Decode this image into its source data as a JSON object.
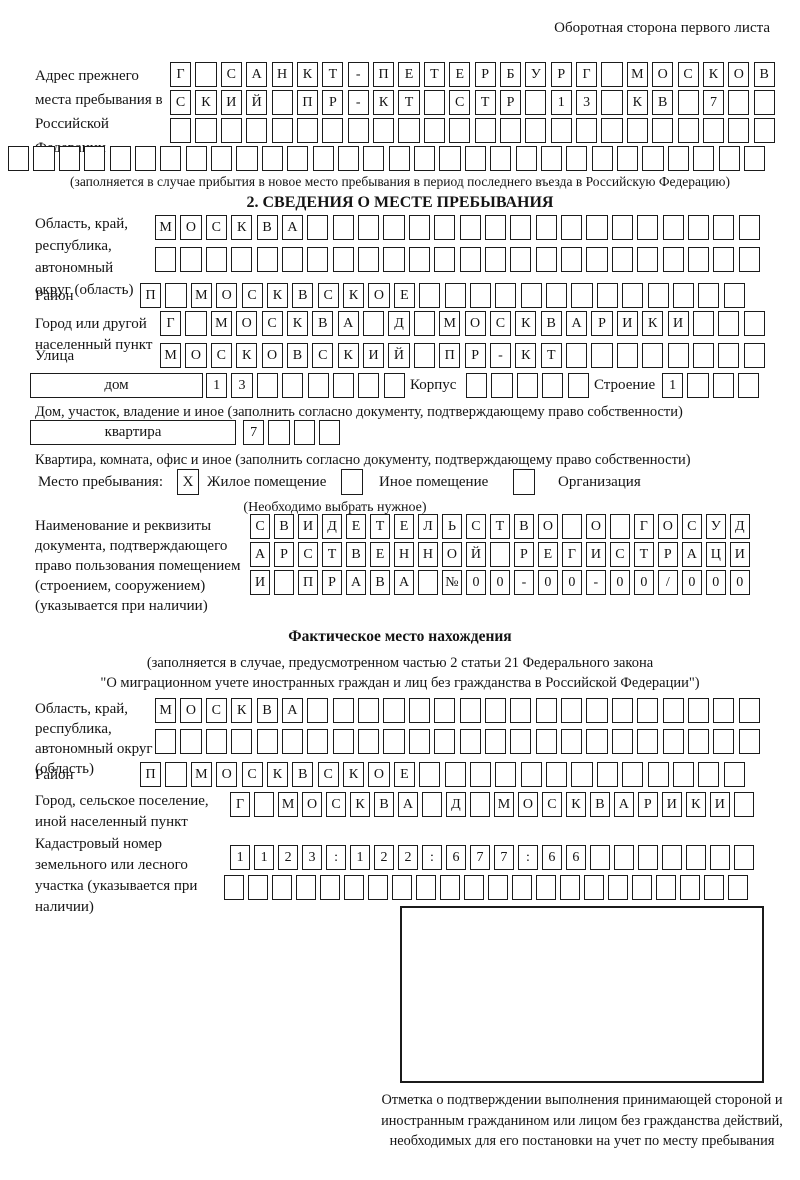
{
  "page": {
    "corner_note": "Оборотная сторона первого листа"
  },
  "prev_address": {
    "label": "Адрес прежнего места пребывания в Российской Федерации",
    "row1": "Г САНКТ-ПЕТЕРБУРГ МОСКОВ",
    "row2": "СКИЙ ПР-КТ СТР 13 КВ 7",
    "row3": "",
    "row4": "",
    "note": "(заполняется в случае прибытия в новое место пребывания в период последнего въезда в Российскую Федерацию)"
  },
  "section2": {
    "title": "2. СВЕДЕНИЯ О МЕСТЕ ПРЕБЫВАНИЯ",
    "region": {
      "label": "Область, край, республика, автономный округ (область)",
      "row1": "МОСКВА",
      "row2": ""
    },
    "district": {
      "label": "Район",
      "row": "П МОСКВСКОЕ"
    },
    "city": {
      "label": "Город или другой населенный пункт",
      "row": "Г МОСКВА Д МОСКВАРИКИ"
    },
    "street": {
      "label": "Улица",
      "row": "МОСКОВСКИЙ ПР-КТ"
    },
    "house": {
      "box_label": "дом",
      "number": "13",
      "korpus_label": "Корпус",
      "korpus_value": "",
      "stroenie_label": "Строение",
      "stroenie_value": "1",
      "note": "Дом, участок, владение и иное (заполнить согласно документу, подтверждающему право собственности)"
    },
    "apartment": {
      "box_label": "квартира",
      "number": "7",
      "note": "Квартира, комната, офис и иное (заполнить согласно документу, подтверждающему право собственности)"
    },
    "stay_type": {
      "label": "Место пребывания:",
      "selected_mark": "X",
      "option1": "Жилое помещение",
      "option2": "Иное помещение",
      "option3": "Организация",
      "note": "(Необходимо выбрать нужное)"
    },
    "document": {
      "label": "Наименование и реквизиты документа, подтверждающего право пользования помещением (строением, сооружением) (указывается при наличии)",
      "row1": "СВИДЕТЕЛЬСТВО О ГОСУД",
      "row2": "АРСТВЕННОЙ РЕГИСТРАЦИ",
      "row3": "И ПРАВА №00-00-00/000"
    }
  },
  "actual_location": {
    "title": "Фактическое место нахождения",
    "note_line1": "(заполняется в случае, предусмотренном частью 2 статьи 21 Федерального закона",
    "note_line2": "\"О миграционном учете иностранных граждан и лиц без гражданства в Российской Федерации\")",
    "region": {
      "label": "Область, край, республика, автономный округ (область)",
      "row1": "МОСКВА",
      "row2": ""
    },
    "district": {
      "label": "Район",
      "row": "П МОСКВСКОЕ"
    },
    "city": {
      "label": "Город, сельское поселение, иной населенный пункт",
      "row": "Г МОСКВА Д МОСКВАРИКИ"
    },
    "cadastre": {
      "label": "Кадастровый номер земельного или лесного участка (указывается при наличии)",
      "row1": "1123:122:677:66",
      "row2": ""
    }
  },
  "confirmation": {
    "caption": "Отметка о подтверждении выполнения принимающей стороной и иностранным гражданином или лицом без гражданства действий, необходимых для его постановки на учет по месту пребывания"
  }
}
